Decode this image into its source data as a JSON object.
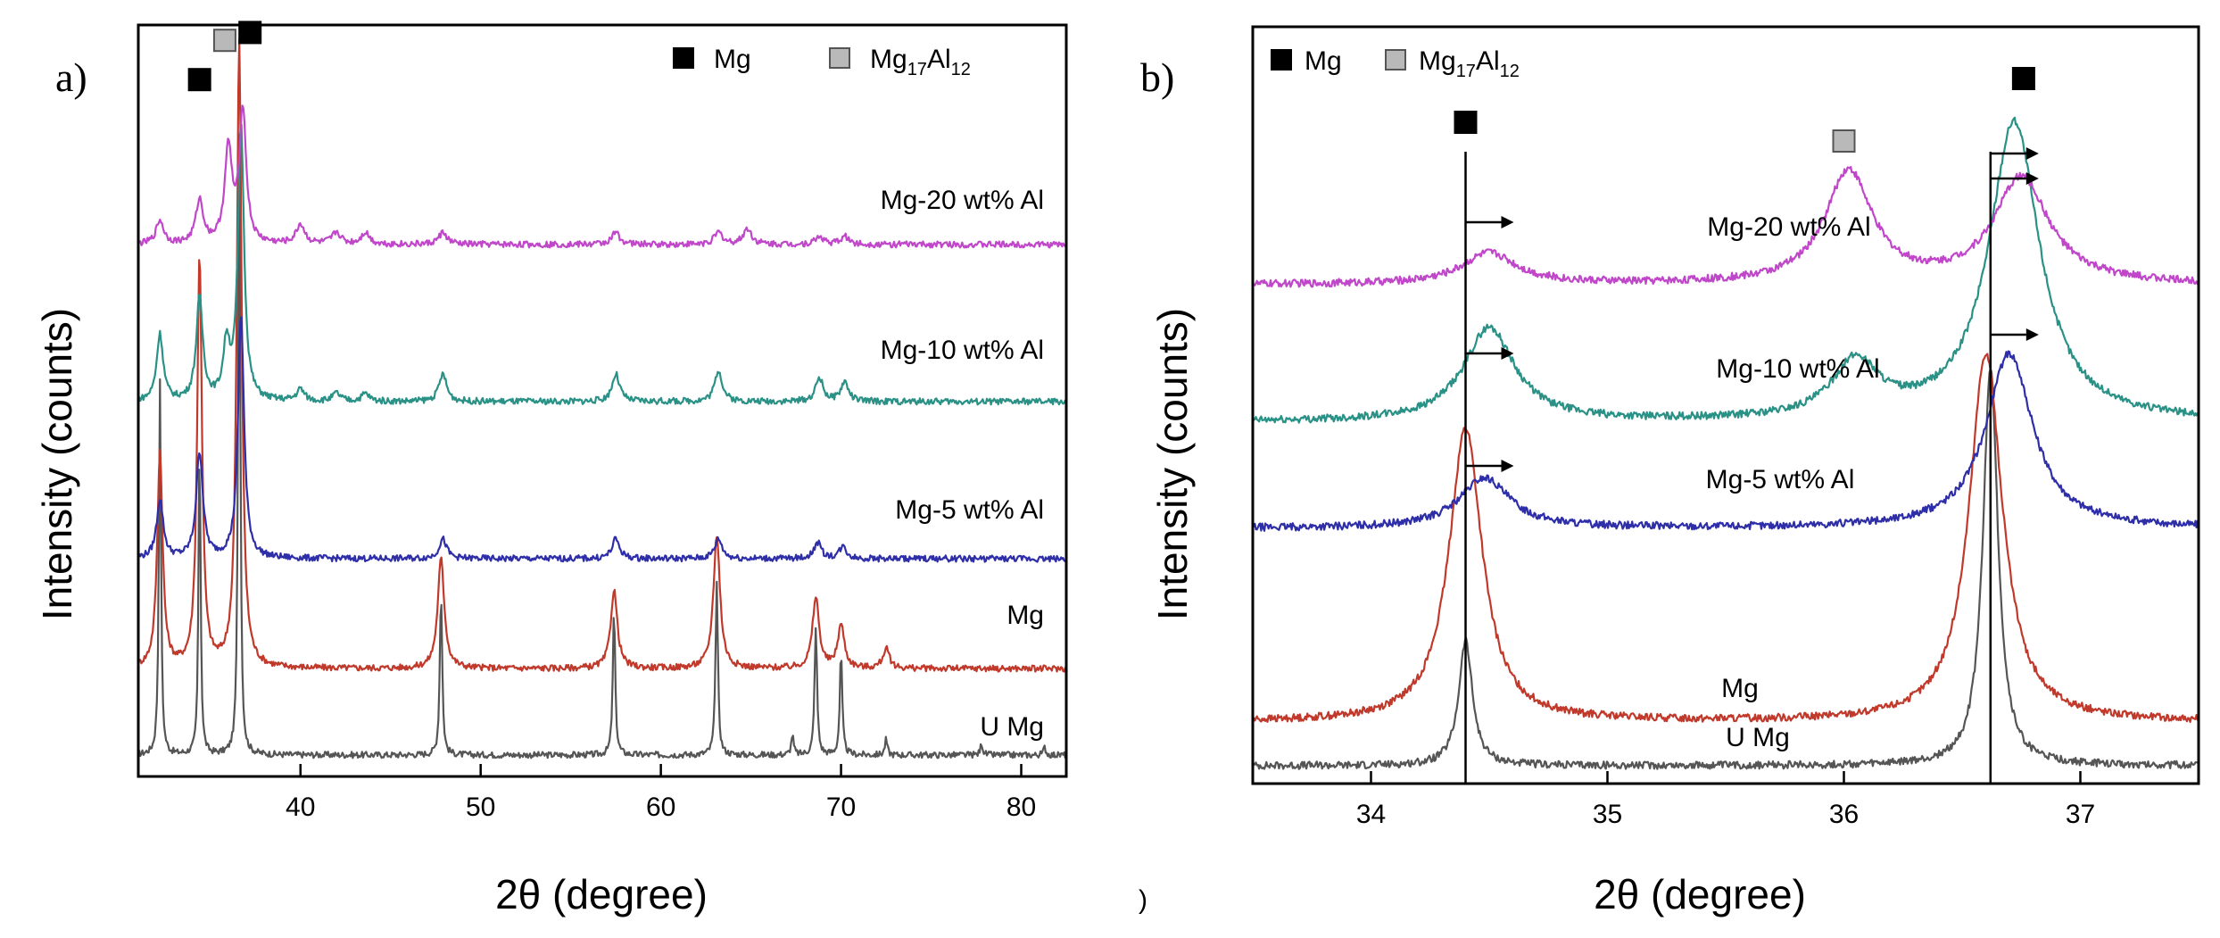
{
  "chart_data": [
    {
      "type": "line",
      "panel": "a)",
      "xlabel": "2θ (degree)",
      "ylabel": "Intensity (counts)",
      "xlim": [
        31,
        82.5
      ],
      "x_ticks": [
        40,
        50,
        60,
        70,
        80
      ],
      "legend": [
        {
          "label": "Mg",
          "marker": "mg"
        },
        {
          "label": "Mg",
          "sub1": "17",
          "mid": "Al",
          "sub2": "12",
          "marker": "phase"
        }
      ],
      "series": [
        {
          "name": "U Mg",
          "color": "#555555",
          "offset": 0,
          "scale": 1.0,
          "peaks": [
            [
              32.2,
              0.95,
              0.07
            ],
            [
              34.4,
              0.8,
              0.07
            ],
            [
              36.6,
              1.6,
              0.07
            ],
            [
              47.8,
              0.42,
              0.08
            ],
            [
              57.4,
              0.37,
              0.08
            ],
            [
              63.1,
              0.44,
              0.08
            ],
            [
              67.3,
              0.05,
              0.08
            ],
            [
              68.6,
              0.33,
              0.08
            ],
            [
              70.0,
              0.26,
              0.08
            ],
            [
              72.5,
              0.04,
              0.08
            ],
            [
              77.8,
              0.03,
              0.08
            ],
            [
              81.3,
              0.02,
              0.08
            ]
          ]
        },
        {
          "name": "Mg",
          "color": "#c0392b",
          "offset": 0.22,
          "scale": 1.0,
          "peaks": [
            [
              32.2,
              0.55,
              0.18
            ],
            [
              34.4,
              1.05,
              0.16
            ],
            [
              36.6,
              1.6,
              0.16
            ],
            [
              47.8,
              0.28,
              0.22
            ],
            [
              57.4,
              0.2,
              0.22
            ],
            [
              63.1,
              0.34,
              0.22
            ],
            [
              68.6,
              0.18,
              0.22
            ],
            [
              70.0,
              0.11,
              0.22
            ],
            [
              72.5,
              0.05,
              0.22
            ]
          ]
        },
        {
          "name": "Mg-5 wt% Al",
          "color": "#2e2ea8",
          "offset": 0.5,
          "scale": 1.0,
          "peaks": [
            [
              32.2,
              0.15,
              0.22
            ],
            [
              34.4,
              0.27,
              0.22
            ],
            [
              36.7,
              0.62,
              0.2
            ],
            [
              47.9,
              0.05,
              0.25
            ],
            [
              57.5,
              0.05,
              0.25
            ],
            [
              63.2,
              0.05,
              0.25
            ],
            [
              68.7,
              0.04,
              0.25
            ],
            [
              70.1,
              0.03,
              0.25
            ]
          ]
        },
        {
          "name": "Mg-10 wt% Al",
          "color": "#2a9186",
          "offset": 0.9,
          "scale": 1.0,
          "peaks": [
            [
              32.2,
              0.17,
              0.22
            ],
            [
              34.4,
              0.26,
              0.22
            ],
            [
              35.9,
              0.14,
              0.22
            ],
            [
              36.7,
              0.7,
              0.2
            ],
            [
              40.0,
              0.03,
              0.25
            ],
            [
              42.0,
              0.02,
              0.25
            ],
            [
              43.6,
              0.02,
              0.25
            ],
            [
              47.9,
              0.07,
              0.25
            ],
            [
              57.5,
              0.07,
              0.25
            ],
            [
              63.2,
              0.08,
              0.25
            ],
            [
              68.8,
              0.06,
              0.25
            ],
            [
              70.2,
              0.05,
              0.25
            ]
          ]
        },
        {
          "name": "Mg-20 wt% Al",
          "color": "#c047c9",
          "offset": 1.3,
          "scale": 1.0,
          "peaks": [
            [
              32.2,
              0.06,
              0.25
            ],
            [
              34.4,
              0.11,
              0.25
            ],
            [
              36.0,
              0.24,
              0.25
            ],
            [
              36.8,
              0.34,
              0.22
            ],
            [
              40.0,
              0.05,
              0.28
            ],
            [
              42.0,
              0.03,
              0.28
            ],
            [
              43.6,
              0.03,
              0.28
            ],
            [
              47.9,
              0.03,
              0.28
            ],
            [
              57.5,
              0.03,
              0.28
            ],
            [
              63.2,
              0.03,
              0.28
            ],
            [
              64.8,
              0.04,
              0.28
            ],
            [
              68.8,
              0.02,
              0.28
            ],
            [
              70.2,
              0.02,
              0.28
            ]
          ]
        }
      ],
      "peak_markers": [
        {
          "phase": "mg",
          "x": 34.4,
          "y": 1.72
        },
        {
          "phase": "phase",
          "x": 35.8,
          "y": 1.82
        },
        {
          "phase": "mg",
          "x": 37.2,
          "y": 1.84
        }
      ]
    },
    {
      "type": "line",
      "panel": "b)",
      "xlabel": "2θ (degree)",
      "ylabel": "Intensity (counts)",
      "xlim": [
        33.5,
        37.5
      ],
      "x_ticks": [
        34,
        35,
        36,
        37
      ],
      "legend": [
        {
          "label": "Mg",
          "marker": "mg"
        },
        {
          "label": "Mg",
          "sub1": "17",
          "mid": "Al",
          "sub2": "12",
          "marker": "phase"
        }
      ],
      "series": [
        {
          "name": "U Mg",
          "color": "#555555",
          "offset": 0,
          "scale": 1.0,
          "peaks": [
            [
              34.4,
              0.2,
              0.035
            ],
            [
              36.62,
              0.64,
              0.038
            ]
          ]
        },
        {
          "name": "Mg",
          "color": "#c0392b",
          "offset": 0.07,
          "scale": 1.0,
          "peaks": [
            [
              34.4,
              0.47,
              0.085
            ],
            [
              36.6,
              0.59,
              0.085
            ]
          ]
        },
        {
          "name": "Mg-5 wt% Al",
          "color": "#2e2ea8",
          "offset": 0.38,
          "scale": 1.0,
          "peaks": [
            [
              34.48,
              0.08,
              0.13
            ],
            [
              36.7,
              0.28,
              0.12
            ]
          ]
        },
        {
          "name": "Mg-10 wt% Al",
          "color": "#2a9186",
          "offset": 0.55,
          "scale": 1.0,
          "peaks": [
            [
              34.5,
              0.15,
              0.13
            ],
            [
              36.05,
              0.09,
              0.12
            ],
            [
              36.72,
              0.48,
              0.13
            ]
          ]
        },
        {
          "name": "Mg-20 wt% Al",
          "color": "#c047c9",
          "offset": 0.77,
          "scale": 1.0,
          "peaks": [
            [
              34.5,
              0.05,
              0.14
            ],
            [
              36.02,
              0.18,
              0.12
            ],
            [
              36.75,
              0.17,
              0.14
            ]
          ]
        }
      ],
      "reference_lines": [
        34.4,
        36.62
      ],
      "shift_arrows": [
        {
          "x": 34.4,
          "y": 0.87
        },
        {
          "x": 34.4,
          "y": 0.66
        },
        {
          "x": 34.4,
          "y": 0.48
        },
        {
          "x": 36.62,
          "y": 0.98
        },
        {
          "x": 36.62,
          "y": 0.94
        },
        {
          "x": 36.62,
          "y": 0.69
        }
      ],
      "peak_markers": [
        {
          "phase": "mg",
          "x": 34.4,
          "y": 1.03
        },
        {
          "phase": "phase",
          "x": 36.0,
          "y": 1.0
        },
        {
          "phase": "mg",
          "x": 36.76,
          "y": 1.1
        }
      ]
    }
  ],
  "footer": {
    "stray_mark": ")"
  }
}
